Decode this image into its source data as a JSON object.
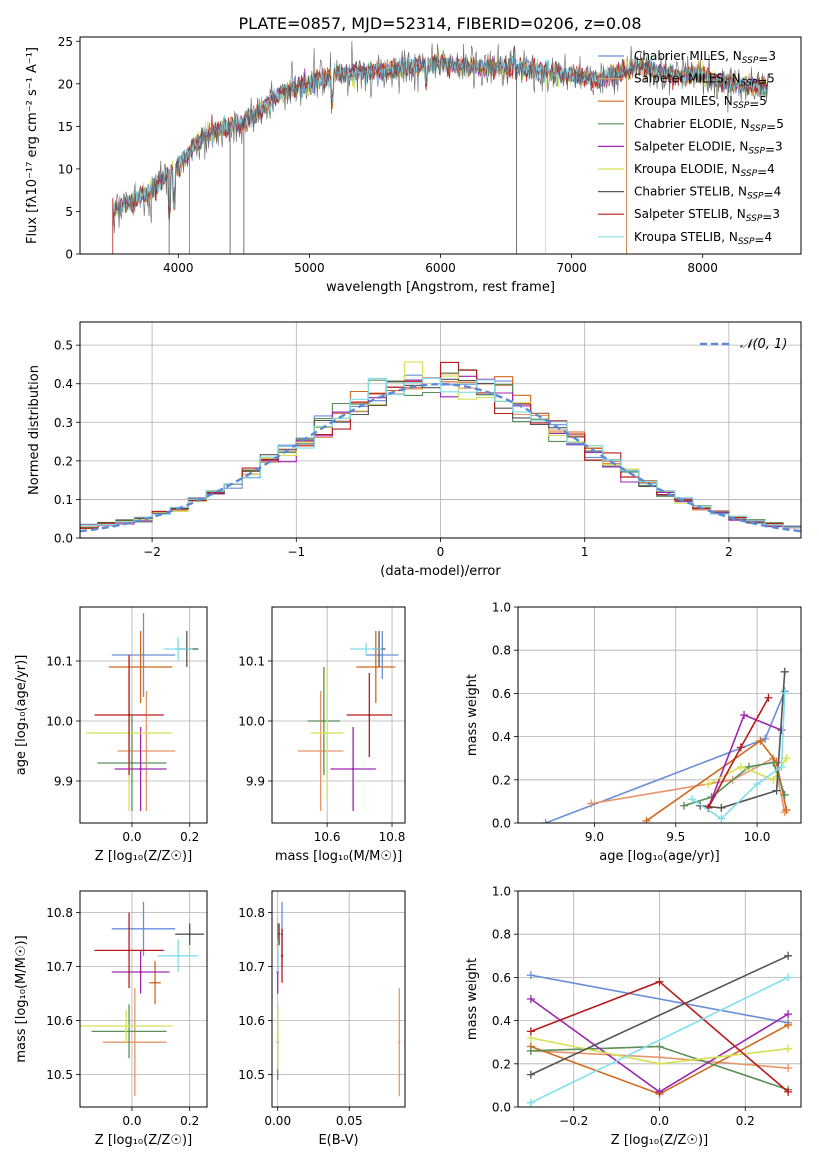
{
  "figure": {
    "title": "PLATE=0857, MJD=52314, FIBERID=0206, z=0.08"
  },
  "models": [
    {
      "name": "Chabrier MILES",
      "nssp": "3",
      "color": "#6a8fd8"
    },
    {
      "name": "Salpeter MILES",
      "nssp": "5",
      "color": "#e8956b"
    },
    {
      "name": "Kroupa MILES",
      "nssp": "5",
      "color": "#d2691e"
    },
    {
      "name": "Chabrier ELODIE",
      "nssp": "5",
      "color": "#5a8f5a"
    },
    {
      "name": "Salpeter ELODIE",
      "nssp": "3",
      "color": "#9c27b0"
    },
    {
      "name": "Kroupa ELODIE",
      "nssp": "4",
      "color": "#d4e157"
    },
    {
      "name": "Chabrier STELIB",
      "nssp": "4",
      "color": "#555555"
    },
    {
      "name": "Salpeter STELIB",
      "nssp": "3",
      "color": "#b71c1c"
    },
    {
      "name": "Kroupa STELIB",
      "nssp": "4",
      "color": "#80deea"
    }
  ],
  "chart_data": [
    {
      "id": "spectrum",
      "type": "line",
      "xlabel": "wavelength [Angstrom, rest frame]",
      "ylabel": "Flux [fλ10⁻¹⁷ erg cm⁻² s⁻¹ A⁻¹]",
      "xlim": [
        3250,
        8750
      ],
      "ylim": [
        0,
        25.5
      ],
      "xticks": [
        4000,
        5000,
        6000,
        7000,
        8000
      ],
      "yticks": [
        0,
        5,
        10,
        15,
        20,
        25
      ],
      "x": [
        3500,
        3800,
        4000,
        4200,
        4500,
        4800,
        5000,
        5200,
        5500,
        5800,
        6000,
        6200,
        6500,
        6800,
        7000,
        7200,
        7500,
        7800,
        8000,
        8200,
        8500
      ],
      "y": [
        5,
        7.5,
        10.5,
        14,
        15.5,
        19,
        20,
        21,
        21.5,
        22,
        22.5,
        22,
        22,
        21.5,
        21,
        20.5,
        22,
        21,
        21,
        20,
        19.5
      ],
      "legend": "upper right",
      "grid": false
    },
    {
      "id": "residuals",
      "type": "histogram",
      "xlabel": "(data-model)/error",
      "ylabel": "Normed distribution",
      "xlim": [
        -2.5,
        2.5
      ],
      "ylim": [
        0,
        0.56
      ],
      "xticks": [
        -2,
        -1,
        0,
        1,
        2
      ],
      "yticks": [
        0,
        0.1,
        0.2,
        0.3,
        0.4,
        0.5
      ],
      "bin_width": 0.125,
      "reference_label": "𝒩(0, 1)",
      "legend": "upper right",
      "grid": true
    },
    {
      "id": "z-age",
      "type": "scatter",
      "xlabel": "Z [log₁₀(Z/Z☉)]",
      "ylabel": "age  [log₁₀(age/yr)]",
      "xlim": [
        -0.18,
        0.26
      ],
      "ylim": [
        9.83,
        10.19
      ],
      "xticks": [
        0.0,
        0.2
      ],
      "yticks": [
        9.9,
        10.0,
        10.1
      ],
      "grid": true,
      "points": [
        {
          "model": 0,
          "x": 0.04,
          "y": 10.11,
          "xerr": 0.11,
          "yerr": 0.07
        },
        {
          "model": 1,
          "x": 0.05,
          "y": 9.95,
          "xerr": 0.1,
          "yerr": 0.1
        },
        {
          "model": 2,
          "x": 0.03,
          "y": 10.09,
          "xerr": 0.11,
          "yerr": 0.06
        },
        {
          "model": 3,
          "x": 0.0,
          "y": 9.93,
          "xerr": 0.12,
          "yerr": 0.08
        },
        {
          "model": 4,
          "x": 0.03,
          "y": 9.92,
          "xerr": 0.09,
          "yerr": 0.07
        },
        {
          "model": 5,
          "x": -0.01,
          "y": 9.98,
          "xerr": 0.15,
          "yerr": 0.13
        },
        {
          "model": 6,
          "x": 0.19,
          "y": 10.12,
          "xerr": 0.04,
          "yerr": 0.03
        },
        {
          "model": 7,
          "x": -0.01,
          "y": 10.01,
          "xerr": 0.12,
          "yerr": 0.1
        },
        {
          "model": 8,
          "x": 0.16,
          "y": 10.12,
          "xerr": 0.05,
          "yerr": 0.02
        }
      ]
    },
    {
      "id": "mass-age",
      "type": "scatter",
      "xlabel": "mass [log₁₀(M/M☉)]",
      "ylabel": "",
      "xlim": [
        10.43,
        10.84
      ],
      "ylim": [
        9.83,
        10.19
      ],
      "xticks": [
        10.6,
        10.8
      ],
      "yticks": [
        9.9,
        10.0,
        10.1
      ],
      "grid": true,
      "points": [
        {
          "model": 0,
          "x": 10.77,
          "y": 10.11,
          "xerr": 0.05,
          "yerr": 0.04
        },
        {
          "model": 1,
          "x": 10.58,
          "y": 9.95,
          "xerr": 0.07,
          "yerr": 0.1
        },
        {
          "model": 2,
          "x": 10.75,
          "y": 10.09,
          "xerr": 0.06,
          "yerr": 0.06
        },
        {
          "model": 3,
          "x": 10.59,
          "y": 10.0,
          "xerr": 0.05,
          "yerr": 0.09
        },
        {
          "model": 4,
          "x": 10.68,
          "y": 9.92,
          "xerr": 0.07,
          "yerr": 0.07
        },
        {
          "model": 5,
          "x": 10.6,
          "y": 9.98,
          "xerr": 0.05,
          "yerr": 0.11
        },
        {
          "model": 6,
          "x": 10.76,
          "y": 10.12,
          "xerr": 0.02,
          "yerr": 0.03
        },
        {
          "model": 7,
          "x": 10.73,
          "y": 10.01,
          "xerr": 0.07,
          "yerr": 0.07
        },
        {
          "model": 8,
          "x": 10.72,
          "y": 10.12,
          "xerr": 0.05,
          "yerr": 0.01
        }
      ]
    },
    {
      "id": "age-weight",
      "type": "line",
      "xlabel": "age  [log₁₀(age/yr)]",
      "ylabel": "mass weight",
      "xlim": [
        8.53,
        10.27
      ],
      "ylim": [
        0,
        1
      ],
      "xticks": [
        9.0,
        9.5,
        10.0
      ],
      "yticks": [
        0.0,
        0.2,
        0.4,
        0.6,
        0.8,
        1.0
      ],
      "grid": true,
      "series": [
        {
          "model": 0,
          "x": [
            8.7,
            10.05,
            10.17
          ],
          "y": [
            0.0,
            0.39,
            0.61
          ]
        },
        {
          "model": 1,
          "x": [
            8.98,
            9.85,
            10.1,
            10.17
          ],
          "y": [
            0.09,
            0.2,
            0.3,
            0.05
          ]
        },
        {
          "model": 2,
          "x": [
            9.32,
            10.02,
            10.12,
            10.18
          ],
          "y": [
            0.01,
            0.38,
            0.28,
            0.06
          ]
        },
        {
          "model": 3,
          "x": [
            9.55,
            9.72,
            9.95,
            10.1,
            10.17
          ],
          "y": [
            0.08,
            0.12,
            0.26,
            0.28,
            0.13
          ]
        },
        {
          "model": 4,
          "x": [
            9.7,
            9.92,
            10.15
          ],
          "y": [
            0.07,
            0.5,
            0.43
          ]
        },
        {
          "model": 5,
          "x": [
            9.7,
            9.9,
            10.1,
            10.18
          ],
          "y": [
            0.18,
            0.26,
            0.2,
            0.3
          ]
        },
        {
          "model": 6,
          "x": [
            9.65,
            9.78,
            10.12,
            10.17
          ],
          "y": [
            0.08,
            0.07,
            0.15,
            0.7
          ]
        },
        {
          "model": 7,
          "x": [
            9.7,
            9.9,
            10.07
          ],
          "y": [
            0.07,
            0.35,
            0.58
          ]
        },
        {
          "model": 8,
          "x": [
            9.6,
            9.78,
            10.0,
            10.15,
            10.17
          ],
          "y": [
            0.11,
            0.02,
            0.18,
            0.26,
            0.6
          ]
        }
      ]
    },
    {
      "id": "z-mass",
      "type": "scatter",
      "xlabel": "Z [log₁₀(Z/Z☉)]",
      "ylabel": "mass [log₁₀(M/M☉)]",
      "xlim": [
        -0.18,
        0.26
      ],
      "ylim": [
        10.44,
        10.84
      ],
      "xticks": [
        0.0,
        0.2
      ],
      "yticks": [
        10.5,
        10.6,
        10.7,
        10.8
      ],
      "grid": true,
      "points": [
        {
          "model": 0,
          "x": 0.04,
          "y": 10.77,
          "xerr": 0.11,
          "yerr": 0.05
        },
        {
          "model": 1,
          "x": 0.01,
          "y": 10.56,
          "xerr": 0.11,
          "yerr": 0.1
        },
        {
          "model": 2,
          "x": 0.08,
          "y": 10.67,
          "xerr": 0.02,
          "yerr": 0.04
        },
        {
          "model": 3,
          "x": -0.01,
          "y": 10.58,
          "xerr": 0.13,
          "yerr": 0.05
        },
        {
          "model": 4,
          "x": 0.03,
          "y": 10.69,
          "xerr": 0.1,
          "yerr": 0.04
        },
        {
          "model": 5,
          "x": -0.02,
          "y": 10.59,
          "xerr": 0.16,
          "yerr": 0.03
        },
        {
          "model": 6,
          "x": 0.2,
          "y": 10.76,
          "xerr": 0.05,
          "yerr": 0.02
        },
        {
          "model": 7,
          "x": -0.01,
          "y": 10.73,
          "xerr": 0.12,
          "yerr": 0.07
        },
        {
          "model": 8,
          "x": 0.16,
          "y": 10.72,
          "xerr": 0.07,
          "yerr": 0.03
        }
      ]
    },
    {
      "id": "ebv-mass",
      "type": "scatter",
      "xlabel": "E(B-V)",
      "ylabel": "",
      "xlim": [
        -0.004,
        0.089
      ],
      "ylim": [
        10.44,
        10.84
      ],
      "xticks": [
        0.0,
        0.05
      ],
      "yticks": [
        10.5,
        10.6,
        10.7,
        10.8
      ],
      "grid": true,
      "points": [
        {
          "model": 0,
          "x": 0.003,
          "y": 10.76,
          "yerr": 0.06
        },
        {
          "model": 1,
          "x": 0.085,
          "y": 10.56,
          "yerr": 0.1
        },
        {
          "model": 2,
          "x": 0.0,
          "y": 10.74,
          "yerr": 0.04
        },
        {
          "model": 3,
          "x": 0.0,
          "y": 10.56,
          "yerr": 0.07
        },
        {
          "model": 4,
          "x": 0.0,
          "y": 10.69,
          "yerr": 0.04
        },
        {
          "model": 5,
          "x": 0.0,
          "y": 10.57,
          "yerr": 0.06
        },
        {
          "model": 6,
          "x": 0.001,
          "y": 10.76,
          "yerr": 0.02
        },
        {
          "model": 7,
          "x": 0.003,
          "y": 10.72,
          "yerr": 0.05
        },
        {
          "model": 8,
          "x": 0.0,
          "y": 10.72,
          "yerr": 0.03
        }
      ]
    },
    {
      "id": "z-weight",
      "type": "line",
      "xlabel": "Z [log₁₀(Z/Z☉)]",
      "ylabel": "mass weight",
      "xlim": [
        -0.33,
        0.33
      ],
      "ylim": [
        0,
        1
      ],
      "xticks": [
        -0.2,
        0.0,
        0.2
      ],
      "yticks": [
        0.0,
        0.2,
        0.4,
        0.6,
        0.8,
        1.0
      ],
      "grid": true,
      "series": [
        {
          "model": 0,
          "x": [
            -0.3,
            0.3
          ],
          "y": [
            0.61,
            0.39
          ]
        },
        {
          "model": 1,
          "x": [
            -0.3,
            0.0,
            0.3
          ],
          "y": [
            0.26,
            0.23,
            0.18
          ]
        },
        {
          "model": 2,
          "x": [
            -0.3,
            0.0,
            0.3
          ],
          "y": [
            0.28,
            0.06,
            0.38
          ]
        },
        {
          "model": 3,
          "x": [
            -0.3,
            0.0,
            0.3
          ],
          "y": [
            0.26,
            0.28,
            0.08
          ]
        },
        {
          "model": 4,
          "x": [
            -0.3,
            0.0,
            0.3
          ],
          "y": [
            0.5,
            0.07,
            0.43
          ]
        },
        {
          "model": 5,
          "x": [
            -0.3,
            0.0,
            0.3
          ],
          "y": [
            0.32,
            0.2,
            0.27
          ]
        },
        {
          "model": 6,
          "x": [
            -0.3,
            0.3
          ],
          "y": [
            0.15,
            0.7
          ]
        },
        {
          "model": 7,
          "x": [
            -0.3,
            0.0,
            0.3
          ],
          "y": [
            0.35,
            0.58,
            0.07
          ]
        },
        {
          "model": 8,
          "x": [
            -0.3,
            0.3
          ],
          "y": [
            0.02,
            0.6
          ]
        }
      ]
    }
  ]
}
